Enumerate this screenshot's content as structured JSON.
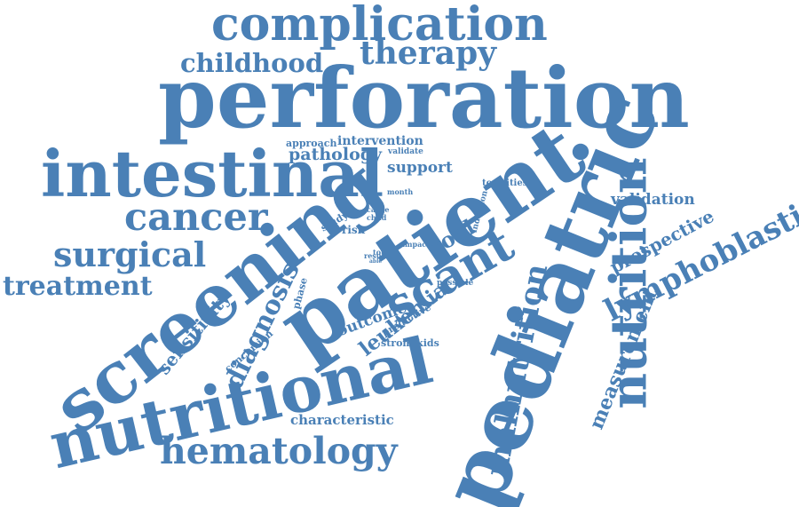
{
  "cloud": {
    "color": "#4a80b6",
    "words": [
      "complication",
      "childhood",
      "therapy",
      "perforation",
      "approach",
      "intervention",
      "pathology",
      "validate",
      "intestinal",
      "support",
      "month",
      "cancer",
      "surgical",
      "treatment",
      "patient",
      "screening",
      "pediatric",
      "nutrition",
      "validation",
      "lymphoblastic",
      "prospective",
      "toxicities",
      "induction",
      "scant",
      "tool",
      "study",
      "cause",
      "child",
      "risk",
      "impact",
      "total",
      "result",
      "able",
      "possible",
      "phase",
      "outcome",
      "predictive",
      "leukemia",
      "strongkids",
      "diagnosis",
      "sensitivity",
      "conclusion",
      "nutritional",
      "malnutrition",
      "measurement",
      "characteristic",
      "hematology"
    ]
  }
}
